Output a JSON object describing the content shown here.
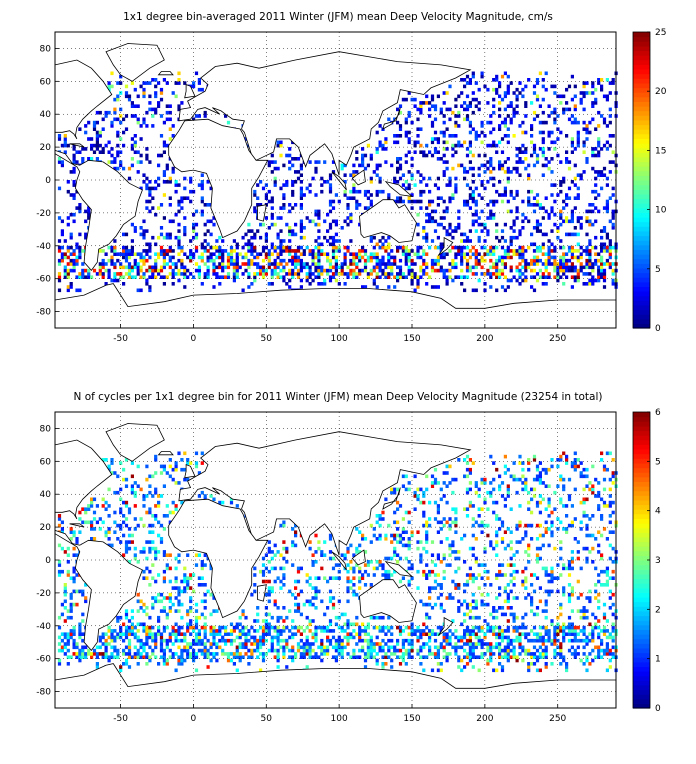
{
  "colors": {
    "land_fill": "#ffffff",
    "coast": "#000000",
    "grid": "#000000",
    "colormap": "jet"
  },
  "chart_data": [
    {
      "type": "heatmap",
      "title": "1x1 degree bin-averaged 2011 Winter (JFM) mean Deep Velocity Magnitude, cm/s",
      "x_ticks": [
        -50,
        0,
        50,
        100,
        150,
        200,
        250
      ],
      "y_ticks": [
        80,
        60,
        40,
        20,
        0,
        -20,
        -40,
        -60,
        -80
      ],
      "xlim": [
        -95,
        290
      ],
      "ylim": [
        -90,
        90
      ],
      "grid": true,
      "colorbar": {
        "min": 0,
        "max": 25,
        "ticks": [
          0,
          5,
          10,
          15,
          20,
          25
        ]
      },
      "description_of_values": "mostly 0-5 cm/s in the open ocean; 10-25 cm/s along the Antarctic Circumpolar Current (~40S-60S) and western boundary currents"
    },
    {
      "type": "heatmap",
      "title": "N of cycles per 1x1 degree bin for 2011 Winter (JFM) mean Deep Velocity Magnitude (23254 in total)",
      "x_ticks": [
        -50,
        0,
        50,
        100,
        150,
        200,
        250
      ],
      "y_ticks": [
        80,
        60,
        40,
        20,
        0,
        -20,
        -40,
        -60,
        -80
      ],
      "xlim": [
        -95,
        290
      ],
      "ylim": [
        -90,
        90
      ],
      "grid": true,
      "colorbar": {
        "min": 0,
        "max": 6,
        "ticks": [
          0,
          1,
          2,
          3,
          4,
          5,
          6
        ]
      },
      "total_cycles": 23254
    }
  ]
}
